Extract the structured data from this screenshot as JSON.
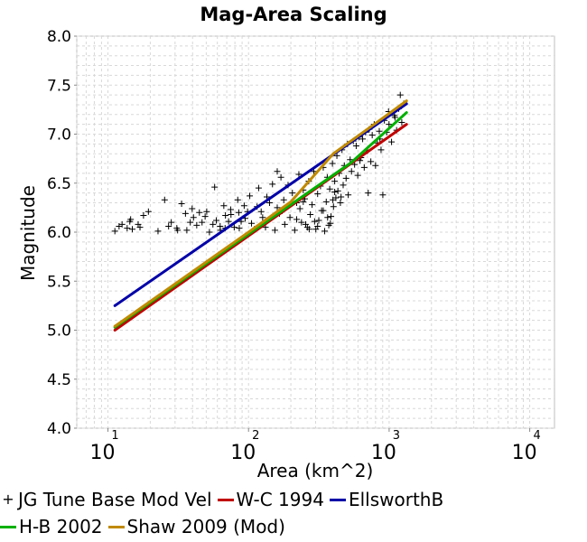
{
  "chart_data": {
    "type": "scatter",
    "title": "Mag-Area Scaling",
    "xlabel": "Area (km^2)",
    "ylabel": "Magnitude",
    "x_scale": "log",
    "xlim": [
      6,
      15000
    ],
    "ylim": [
      4.0,
      8.0
    ],
    "x_ticks": [
      {
        "value": 10,
        "base": "10",
        "exp": "1"
      },
      {
        "value": 100,
        "base": "10",
        "exp": "2"
      },
      {
        "value": 1000,
        "base": "10",
        "exp": "3"
      },
      {
        "value": 10000,
        "base": "10",
        "exp": "4"
      }
    ],
    "y_ticks": [
      "4.0",
      "4.5",
      "5.0",
      "5.5",
      "6.0",
      "6.5",
      "7.0",
      "7.5",
      "8.0"
    ],
    "grid": true,
    "legend_position": "bottom",
    "series": [
      {
        "name": "JG Tune Base Mod Vel",
        "kind": "points",
        "color": "#000000",
        "points": [
          [
            11.2,
            6.01
          ],
          [
            12.0,
            6.06
          ],
          [
            12.6,
            6.08
          ],
          [
            13.7,
            6.04
          ],
          [
            14.3,
            6.11
          ],
          [
            14.5,
            6.13
          ],
          [
            14.9,
            6.03
          ],
          [
            16.4,
            6.08
          ],
          [
            16.9,
            6.05
          ],
          [
            17.9,
            6.17
          ],
          [
            19.4,
            6.21
          ],
          [
            22.7,
            6.01
          ],
          [
            25.3,
            6.33
          ],
          [
            27.0,
            6.06
          ],
          [
            28.2,
            6.1
          ],
          [
            30.9,
            6.04
          ],
          [
            31.3,
            6.02
          ],
          [
            33.4,
            6.29
          ],
          [
            35.6,
            6.19
          ],
          [
            36.4,
            6.02
          ],
          [
            38.5,
            6.1
          ],
          [
            39.7,
            6.24
          ],
          [
            40.6,
            6.15
          ],
          [
            42.8,
            6.07
          ],
          [
            44.7,
            6.2
          ],
          [
            46.7,
            6.1
          ],
          [
            49.1,
            6.16
          ],
          [
            50.4,
            6.21
          ],
          [
            52.7,
            6.0
          ],
          [
            55.8,
            6.08
          ],
          [
            57.4,
            6.46
          ],
          [
            59.0,
            6.12
          ],
          [
            62.8,
            6.06
          ],
          [
            63.0,
            6.02
          ],
          [
            66.7,
            6.27
          ],
          [
            68.1,
            6.04
          ],
          [
            68.5,
            6.17
          ],
          [
            72.1,
            6.11
          ],
          [
            74.6,
            6.23
          ],
          [
            75.0,
            6.18
          ],
          [
            79.1,
            6.05
          ],
          [
            83.8,
            6.33
          ],
          [
            85.2,
            6.2
          ],
          [
            85.9,
            6.04
          ],
          [
            88.6,
            6.11
          ],
          [
            93.1,
            6.27
          ],
          [
            94.6,
            6.14
          ],
          [
            98.4,
            6.21
          ],
          [
            102,
            6.37
          ],
          [
            105,
            6.09
          ],
          [
            110,
            6.03
          ],
          [
            115,
            6.26
          ],
          [
            118,
            6.45
          ],
          [
            123,
            6.21
          ],
          [
            126,
            6.15
          ],
          [
            132,
            6.05
          ],
          [
            135,
            6.36
          ],
          [
            141,
            6.3
          ],
          [
            148,
            6.49
          ],
          [
            154,
            6.02
          ],
          [
            160,
            6.25
          ],
          [
            166,
            6.19
          ],
          [
            170,
            6.56
          ],
          [
            178,
            6.33
          ],
          [
            181,
            6.08
          ],
          [
            191,
            6.48
          ],
          [
            197,
            6.15
          ],
          [
            205,
            6.4
          ],
          [
            213,
            6.02
          ],
          [
            220,
            6.3
          ],
          [
            228,
            6.59
          ],
          [
            232,
            6.24
          ],
          [
            238,
            6.1
          ],
          [
            245,
            6.43
          ],
          [
            251,
            6.34
          ],
          [
            262,
            6.05
          ],
          [
            268,
            6.52
          ],
          [
            275,
            6.18
          ],
          [
            283,
            6.28
          ],
          [
            291,
            6.62
          ],
          [
            301,
            6.03
          ],
          [
            310,
            6.39
          ],
          [
            316,
            6.12
          ],
          [
            325,
            6.47
          ],
          [
            331,
            6.22
          ],
          [
            340,
            6.66
          ],
          [
            348,
            6.01
          ],
          [
            357,
            6.31
          ],
          [
            363,
            6.56
          ],
          [
            372,
            6.07
          ],
          [
            378,
            6.44
          ],
          [
            386,
            6.16
          ],
          [
            395,
            6.7
          ],
          [
            402,
            6.26
          ],
          [
            410,
            6.52
          ],
          [
            418,
            6.35
          ],
          [
            425,
            6.78
          ],
          [
            432,
            6.42
          ],
          [
            441,
            6.6
          ],
          [
            450,
            6.3
          ],
          [
            462,
            6.84
          ],
          [
            471,
            6.48
          ],
          [
            480,
            6.68
          ],
          [
            494,
            6.55
          ],
          [
            506,
            6.9
          ],
          [
            512,
            6.38
          ],
          [
            528,
            6.74
          ],
          [
            540,
            6.62
          ],
          [
            556,
            6.93
          ],
          [
            568,
            6.69
          ],
          [
            583,
            6.88
          ],
          [
            598,
            6.58
          ],
          [
            612,
            6.97
          ],
          [
            631,
            6.76
          ],
          [
            648,
            6.95
          ],
          [
            665,
            6.66
          ],
          [
            680,
            7.02
          ],
          [
            702,
            6.83
          ],
          [
            722,
            7.05
          ],
          [
            741,
            6.72
          ],
          [
            758,
            6.99
          ],
          [
            783,
            7.1
          ],
          [
            800,
            6.68
          ],
          [
            825,
            6.91
          ],
          [
            851,
            7.03
          ],
          [
            876,
            6.84
          ],
          [
            902,
            6.38
          ],
          [
            925,
            7.14
          ],
          [
            960,
            7.02
          ],
          [
            998,
            7.1
          ],
          [
            1040,
            6.92
          ],
          [
            1090,
            7.19
          ],
          [
            1130,
            7.04
          ],
          [
            1170,
            7.26
          ],
          [
            1200,
            7.4
          ],
          [
            1230,
            7.12
          ],
          [
            1270,
            7.31
          ],
          [
            1100,
            7.17
          ],
          [
            990,
            7.23
          ],
          [
            860,
            6.95
          ],
          [
            710,
            6.4
          ],
          [
            620,
            6.73
          ],
          [
            455,
            6.36
          ],
          [
            410,
            6.41
          ],
          [
            398,
            6.33
          ],
          [
            160,
            6.62
          ],
          [
            245,
            6.31
          ],
          [
            340,
            6.22
          ],
          [
            365,
            6.15
          ],
          [
            382,
            6.09
          ],
          [
            295,
            6.11
          ],
          [
            310,
            6.06
          ],
          [
            270,
            6.03
          ],
          [
            255,
            6.08
          ],
          [
            220,
            6.13
          ]
        ]
      },
      {
        "name": "W-C 1994",
        "kind": "line",
        "color": "#c00000",
        "points": [
          [
            11.2,
            5.0
          ],
          [
            1330,
            7.1
          ]
        ]
      },
      {
        "name": "EllsworthB",
        "kind": "line",
        "color": "#0000a8",
        "points": [
          [
            11.2,
            5.25
          ],
          [
            1330,
            7.31
          ]
        ]
      },
      {
        "name": "H-B 2002",
        "kind": "line",
        "color": "#00b000",
        "points": [
          [
            11.2,
            5.03
          ],
          [
            537,
            6.71
          ],
          [
            1330,
            7.22
          ]
        ]
      },
      {
        "name": "Shaw 2009 (Mod)",
        "kind": "line",
        "color": "#c08a00",
        "points": [
          [
            11.2,
            5.04
          ],
          [
            100,
            6.0
          ],
          [
            200,
            6.31
          ],
          [
            400,
            6.8
          ],
          [
            800,
            7.11
          ],
          [
            1330,
            7.34
          ]
        ]
      }
    ]
  },
  "legend": [
    {
      "label": "JG Tune Base Mod Vel",
      "marker": "+",
      "color": "#000000"
    },
    {
      "label": "W-C 1994",
      "marker": "line",
      "color": "#c00000"
    },
    {
      "label": "EllsworthB",
      "marker": "line",
      "color": "#0000a8"
    },
    {
      "label": "H-B 2002",
      "marker": "line",
      "color": "#00b000"
    },
    {
      "label": "Shaw 2009 (Mod)",
      "marker": "line",
      "color": "#c08a00"
    }
  ]
}
